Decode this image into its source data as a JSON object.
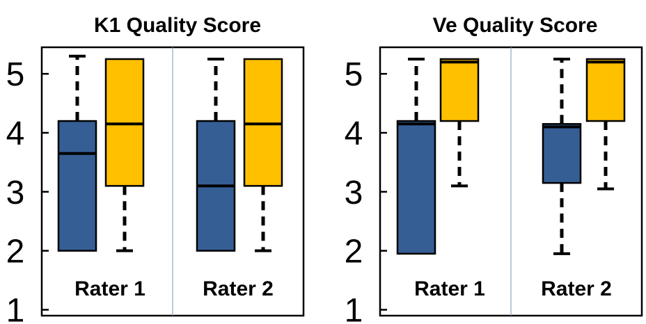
{
  "colors": {
    "series_a": "#355E95",
    "series_b": "#FFC000",
    "divider": "#8EA5C4"
  },
  "chart_data": [
    {
      "type": "box",
      "title": "K1 Quality Score",
      "ylim": [
        0.9,
        5.45
      ],
      "yticks": [
        1,
        2,
        3,
        4,
        5
      ],
      "groups": [
        {
          "label": "Rater 1",
          "boxes": [
            {
              "series": "a",
              "min": 2,
              "q1": 2,
              "median": 3.65,
              "q3": 4.2,
              "max": 5.3
            },
            {
              "series": "b",
              "min": 2,
              "q1": 3.1,
              "median": 4.15,
              "q3": 5.25,
              "max": 5.25
            }
          ]
        },
        {
          "label": "Rater 2",
          "boxes": [
            {
              "series": "a",
              "min": 2,
              "q1": 2,
              "median": 3.1,
              "q3": 4.2,
              "max": 5.25
            },
            {
              "series": "b",
              "min": 2,
              "q1": 3.1,
              "median": 4.15,
              "q3": 5.25,
              "max": 5.25
            }
          ]
        }
      ]
    },
    {
      "type": "box",
      "title": "Ve Quality Score",
      "ylim": [
        0.9,
        5.45
      ],
      "yticks": [
        1,
        2,
        3,
        4,
        5
      ],
      "groups": [
        {
          "label": "Rater 1",
          "boxes": [
            {
              "series": "a",
              "min": 1.95,
              "q1": 1.95,
              "median": 4.15,
              "q3": 4.2,
              "max": 5.25
            },
            {
              "series": "b",
              "min": 3.1,
              "q1": 4.2,
              "median": 5.2,
              "q3": 5.25,
              "max": 5.25
            }
          ]
        },
        {
          "label": "Rater 2",
          "boxes": [
            {
              "series": "a",
              "min": 1.95,
              "q1": 3.15,
              "median": 4.1,
              "q3": 4.15,
              "max": 5.25
            },
            {
              "series": "b",
              "min": 3.05,
              "q1": 4.2,
              "median": 5.2,
              "q3": 5.25,
              "max": 5.25
            }
          ]
        }
      ]
    }
  ]
}
